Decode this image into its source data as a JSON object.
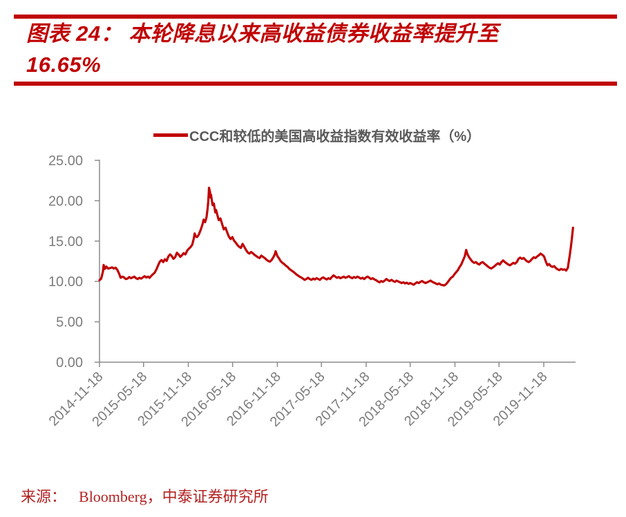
{
  "header": {
    "title_line1": "图表 24： 本轮降息以来高收益债券收益率提升至",
    "title_line2": "16.65%",
    "accent_color": "#C00000"
  },
  "legend": {
    "label": "CCC和较低的美国高收益指数有效收益率（%）",
    "color": "#595959"
  },
  "footer": {
    "source_label": "来源：",
    "source_text": "Bloomberg，中泰证券研究所",
    "color": "#B22222"
  },
  "chart_data": {
    "type": "line",
    "title": "",
    "xlabel": "",
    "ylabel": "",
    "series_name": "CCC和较低的美国高收益指数有效收益率（%）",
    "line_color": "#C00000",
    "axis_color": "#8C8C8C",
    "tick_label_color": "#7D7D7D",
    "grid": false,
    "legend_position": "top",
    "ylim": [
      0,
      25
    ],
    "y_ticks": [
      "25.00",
      "20.00",
      "15.00",
      "10.00",
      "5.00",
      "0.00"
    ],
    "x_ticks": [
      "2014-11-18",
      "2015-05-18",
      "2015-11-18",
      "2016-05-18",
      "2016-11-18",
      "2017-05-18",
      "2017-11-18",
      "2018-05-18",
      "2018-11-18",
      "2019-05-18",
      "2019-11-18"
    ],
    "end_value": 16.65,
    "peak_value": 21.6,
    "points": [
      [
        "2014-11-18",
        10.15
      ],
      [
        "2014-11-25",
        10.35
      ],
      [
        "2014-12-02",
        11.2
      ],
      [
        "2014-12-05",
        12.05
      ],
      [
        "2014-12-10",
        11.55
      ],
      [
        "2014-12-16",
        11.85
      ],
      [
        "2014-12-23",
        11.6
      ],
      [
        "2014-12-31",
        11.65
      ],
      [
        "2015-01-09",
        11.75
      ],
      [
        "2015-01-16",
        11.6
      ],
      [
        "2015-01-23",
        11.7
      ],
      [
        "2015-01-30",
        11.45
      ],
      [
        "2015-02-06",
        11.0
      ],
      [
        "2015-02-13",
        10.45
      ],
      [
        "2015-02-20",
        10.6
      ],
      [
        "2015-02-27",
        10.5
      ],
      [
        "2015-03-06",
        10.3
      ],
      [
        "2015-03-13",
        10.35
      ],
      [
        "2015-03-20",
        10.55
      ],
      [
        "2015-03-27",
        10.4
      ],
      [
        "2015-04-03",
        10.5
      ],
      [
        "2015-04-10",
        10.6
      ],
      [
        "2015-04-17",
        10.4
      ],
      [
        "2015-04-24",
        10.3
      ],
      [
        "2015-05-01",
        10.45
      ],
      [
        "2015-05-08",
        10.35
      ],
      [
        "2015-05-15",
        10.5
      ],
      [
        "2015-05-22",
        10.65
      ],
      [
        "2015-05-29",
        10.5
      ],
      [
        "2015-06-05",
        10.6
      ],
      [
        "2015-06-12",
        10.45
      ],
      [
        "2015-06-19",
        10.7
      ],
      [
        "2015-06-26",
        10.9
      ],
      [
        "2015-07-03",
        11.1
      ],
      [
        "2015-07-10",
        11.5
      ],
      [
        "2015-07-17",
        12.0
      ],
      [
        "2015-07-24",
        12.45
      ],
      [
        "2015-07-31",
        12.65
      ],
      [
        "2015-08-07",
        12.4
      ],
      [
        "2015-08-14",
        12.75
      ],
      [
        "2015-08-21",
        12.55
      ],
      [
        "2015-08-28",
        13.1
      ],
      [
        "2015-09-04",
        13.35
      ],
      [
        "2015-09-11",
        13.15
      ],
      [
        "2015-09-18",
        12.8
      ],
      [
        "2015-09-25",
        13.0
      ],
      [
        "2015-10-02",
        13.55
      ],
      [
        "2015-10-09",
        13.35
      ],
      [
        "2015-10-16",
        13.05
      ],
      [
        "2015-10-23",
        13.25
      ],
      [
        "2015-10-30",
        13.5
      ],
      [
        "2015-11-06",
        13.35
      ],
      [
        "2015-11-13",
        13.8
      ],
      [
        "2015-11-20",
        14.05
      ],
      [
        "2015-11-27",
        14.25
      ],
      [
        "2015-12-04",
        14.55
      ],
      [
        "2015-12-11",
        15.35
      ],
      [
        "2015-12-14",
        15.95
      ],
      [
        "2015-12-18",
        15.6
      ],
      [
        "2015-12-24",
        15.5
      ],
      [
        "2015-12-31",
        15.8
      ],
      [
        "2016-01-08",
        16.4
      ],
      [
        "2016-01-15",
        17.05
      ],
      [
        "2016-01-20",
        17.65
      ],
      [
        "2016-01-26",
        17.35
      ],
      [
        "2016-02-01",
        17.95
      ],
      [
        "2016-02-05",
        18.9
      ],
      [
        "2016-02-08",
        19.9
      ],
      [
        "2016-02-10",
        20.9
      ],
      [
        "2016-02-11",
        21.6
      ],
      [
        "2016-02-15",
        21.1
      ],
      [
        "2016-02-17",
        20.4
      ],
      [
        "2016-02-19",
        20.75
      ],
      [
        "2016-02-23",
        20.0
      ],
      [
        "2016-02-26",
        19.45
      ],
      [
        "2016-03-02",
        19.65
      ],
      [
        "2016-03-08",
        18.55
      ],
      [
        "2016-03-11",
        18.85
      ],
      [
        "2016-03-16",
        18.3
      ],
      [
        "2016-03-22",
        17.6
      ],
      [
        "2016-03-29",
        17.8
      ],
      [
        "2016-04-05",
        17.1
      ],
      [
        "2016-04-12",
        16.45
      ],
      [
        "2016-04-19",
        16.65
      ],
      [
        "2016-04-26",
        16.05
      ],
      [
        "2016-05-03",
        15.55
      ],
      [
        "2016-05-10",
        15.25
      ],
      [
        "2016-05-17",
        15.5
      ],
      [
        "2016-05-24",
        15.05
      ],
      [
        "2016-05-31",
        14.8
      ],
      [
        "2016-06-07",
        14.5
      ],
      [
        "2016-06-14",
        14.3
      ],
      [
        "2016-06-21",
        14.15
      ],
      [
        "2016-06-28",
        14.65
      ],
      [
        "2016-07-05",
        14.3
      ],
      [
        "2016-07-12",
        13.9
      ],
      [
        "2016-07-19",
        13.6
      ],
      [
        "2016-07-26",
        13.45
      ],
      [
        "2016-08-02",
        13.65
      ],
      [
        "2016-08-09",
        13.5
      ],
      [
        "2016-08-16",
        13.3
      ],
      [
        "2016-08-23",
        13.15
      ],
      [
        "2016-08-30",
        13.0
      ],
      [
        "2016-09-06",
        12.9
      ],
      [
        "2016-09-13",
        13.2
      ],
      [
        "2016-09-20",
        13.05
      ],
      [
        "2016-09-27",
        12.9
      ],
      [
        "2016-10-04",
        12.7
      ],
      [
        "2016-10-11",
        12.55
      ],
      [
        "2016-10-18",
        12.45
      ],
      [
        "2016-10-25",
        12.65
      ],
      [
        "2016-11-01",
        12.95
      ],
      [
        "2016-11-08",
        13.4
      ],
      [
        "2016-11-11",
        13.75
      ],
      [
        "2016-11-18",
        13.15
      ],
      [
        "2016-11-25",
        12.85
      ],
      [
        "2016-12-02",
        12.5
      ],
      [
        "2016-12-09",
        12.3
      ],
      [
        "2016-12-16",
        12.15
      ],
      [
        "2016-12-23",
        11.95
      ],
      [
        "2016-12-30",
        11.8
      ],
      [
        "2017-01-06",
        11.55
      ],
      [
        "2017-01-13",
        11.4
      ],
      [
        "2017-01-20",
        11.25
      ],
      [
        "2017-01-27",
        11.1
      ],
      [
        "2017-02-03",
        10.9
      ],
      [
        "2017-02-10",
        10.75
      ],
      [
        "2017-02-17",
        10.6
      ],
      [
        "2017-02-24",
        10.5
      ],
      [
        "2017-03-03",
        10.35
      ],
      [
        "2017-03-10",
        10.2
      ],
      [
        "2017-03-17",
        10.3
      ],
      [
        "2017-03-24",
        10.45
      ],
      [
        "2017-03-31",
        10.3
      ],
      [
        "2017-04-07",
        10.2
      ],
      [
        "2017-04-14",
        10.35
      ],
      [
        "2017-04-21",
        10.25
      ],
      [
        "2017-04-28",
        10.4
      ],
      [
        "2017-05-05",
        10.3
      ],
      [
        "2017-05-12",
        10.2
      ],
      [
        "2017-05-19",
        10.4
      ],
      [
        "2017-05-26",
        10.5
      ],
      [
        "2017-06-02",
        10.35
      ],
      [
        "2017-06-09",
        10.25
      ],
      [
        "2017-06-16",
        10.4
      ],
      [
        "2017-06-23",
        10.3
      ],
      [
        "2017-06-30",
        10.55
      ],
      [
        "2017-07-07",
        10.75
      ],
      [
        "2017-07-14",
        10.6
      ],
      [
        "2017-07-21",
        10.45
      ],
      [
        "2017-07-28",
        10.55
      ],
      [
        "2017-08-04",
        10.4
      ],
      [
        "2017-08-11",
        10.5
      ],
      [
        "2017-08-18",
        10.6
      ],
      [
        "2017-08-25",
        10.45
      ],
      [
        "2017-09-01",
        10.55
      ],
      [
        "2017-09-08",
        10.65
      ],
      [
        "2017-09-15",
        10.5
      ],
      [
        "2017-09-22",
        10.4
      ],
      [
        "2017-09-29",
        10.55
      ],
      [
        "2017-10-06",
        10.45
      ],
      [
        "2017-10-13",
        10.6
      ],
      [
        "2017-10-20",
        10.5
      ],
      [
        "2017-10-27",
        10.35
      ],
      [
        "2017-11-03",
        10.45
      ],
      [
        "2017-11-10",
        10.3
      ],
      [
        "2017-11-17",
        10.5
      ],
      [
        "2017-11-24",
        10.6
      ],
      [
        "2017-12-01",
        10.45
      ],
      [
        "2017-12-08",
        10.3
      ],
      [
        "2017-12-15",
        10.4
      ],
      [
        "2017-12-22",
        10.25
      ],
      [
        "2017-12-29",
        10.15
      ],
      [
        "2018-01-05",
        10.0
      ],
      [
        "2018-01-12",
        9.9
      ],
      [
        "2018-01-19",
        10.05
      ],
      [
        "2018-01-26",
        9.95
      ],
      [
        "2018-02-02",
        10.1
      ],
      [
        "2018-02-09",
        10.3
      ],
      [
        "2018-02-16",
        10.15
      ],
      [
        "2018-02-23",
        10.05
      ],
      [
        "2018-03-02",
        10.2
      ],
      [
        "2018-03-09",
        10.05
      ],
      [
        "2018-03-16",
        9.95
      ],
      [
        "2018-03-23",
        10.1
      ],
      [
        "2018-03-30",
        10.0
      ],
      [
        "2018-04-06",
        9.9
      ],
      [
        "2018-04-13",
        9.8
      ],
      [
        "2018-04-20",
        9.9
      ],
      [
        "2018-04-27",
        9.75
      ],
      [
        "2018-05-04",
        9.85
      ],
      [
        "2018-05-11",
        9.7
      ],
      [
        "2018-05-18",
        9.8
      ],
      [
        "2018-05-25",
        9.7
      ],
      [
        "2018-06-01",
        9.6
      ],
      [
        "2018-06-08",
        9.75
      ],
      [
        "2018-06-15",
        9.9
      ],
      [
        "2018-06-22",
        9.8
      ],
      [
        "2018-06-29",
        9.95
      ],
      [
        "2018-07-06",
        10.05
      ],
      [
        "2018-07-13",
        9.9
      ],
      [
        "2018-07-20",
        9.8
      ],
      [
        "2018-07-27",
        9.9
      ],
      [
        "2018-08-03",
        10.0
      ],
      [
        "2018-08-10",
        10.1
      ],
      [
        "2018-08-17",
        9.95
      ],
      [
        "2018-08-24",
        9.85
      ],
      [
        "2018-08-31",
        9.75
      ],
      [
        "2018-09-07",
        9.65
      ],
      [
        "2018-09-14",
        9.75
      ],
      [
        "2018-09-21",
        9.6
      ],
      [
        "2018-09-28",
        9.55
      ],
      [
        "2018-10-05",
        9.5
      ],
      [
        "2018-10-12",
        9.65
      ],
      [
        "2018-10-19",
        9.9
      ],
      [
        "2018-10-26",
        10.2
      ],
      [
        "2018-11-02",
        10.45
      ],
      [
        "2018-11-09",
        10.6
      ],
      [
        "2018-11-16",
        10.9
      ],
      [
        "2018-11-23",
        11.15
      ],
      [
        "2018-11-30",
        11.4
      ],
      [
        "2018-12-07",
        11.8
      ],
      [
        "2018-12-14",
        12.1
      ],
      [
        "2018-12-21",
        12.6
      ],
      [
        "2018-12-28",
        13.1
      ],
      [
        "2019-01-03",
        13.9
      ],
      [
        "2019-01-08",
        13.4
      ],
      [
        "2019-01-15",
        13.0
      ],
      [
        "2019-01-22",
        12.7
      ],
      [
        "2019-01-29",
        12.45
      ],
      [
        "2019-02-05",
        12.3
      ],
      [
        "2019-02-12",
        12.4
      ],
      [
        "2019-02-19",
        12.2
      ],
      [
        "2019-02-26",
        12.1
      ],
      [
        "2019-03-05",
        12.3
      ],
      [
        "2019-03-12",
        12.4
      ],
      [
        "2019-03-19",
        12.2
      ],
      [
        "2019-03-26",
        12.05
      ],
      [
        "2019-04-02",
        11.85
      ],
      [
        "2019-04-09",
        11.7
      ],
      [
        "2019-04-16",
        11.6
      ],
      [
        "2019-04-23",
        11.75
      ],
      [
        "2019-04-30",
        11.9
      ],
      [
        "2019-05-07",
        12.1
      ],
      [
        "2019-05-14",
        12.25
      ],
      [
        "2019-05-21",
        12.1
      ],
      [
        "2019-05-28",
        12.4
      ],
      [
        "2019-06-04",
        12.6
      ],
      [
        "2019-06-11",
        12.4
      ],
      [
        "2019-06-18",
        12.25
      ],
      [
        "2019-06-25",
        12.1
      ],
      [
        "2019-07-02",
        12.0
      ],
      [
        "2019-07-09",
        12.15
      ],
      [
        "2019-07-16",
        12.3
      ],
      [
        "2019-07-23",
        12.2
      ],
      [
        "2019-07-30",
        12.4
      ],
      [
        "2019-08-06",
        12.8
      ],
      [
        "2019-08-13",
        12.95
      ],
      [
        "2019-08-20",
        12.8
      ],
      [
        "2019-08-27",
        12.9
      ],
      [
        "2019-09-03",
        12.7
      ],
      [
        "2019-09-10",
        12.5
      ],
      [
        "2019-09-17",
        12.4
      ],
      [
        "2019-09-24",
        12.55
      ],
      [
        "2019-10-01",
        12.8
      ],
      [
        "2019-10-08",
        13.0
      ],
      [
        "2019-10-15",
        12.9
      ],
      [
        "2019-10-22",
        13.1
      ],
      [
        "2019-10-29",
        13.25
      ],
      [
        "2019-11-05",
        13.45
      ],
      [
        "2019-11-12",
        13.3
      ],
      [
        "2019-11-19",
        13.1
      ],
      [
        "2019-11-26",
        12.5
      ],
      [
        "2019-12-03",
        12.0
      ],
      [
        "2019-12-10",
        12.15
      ],
      [
        "2019-12-17",
        11.9
      ],
      [
        "2019-12-24",
        11.8
      ],
      [
        "2019-12-31",
        11.9
      ],
      [
        "2020-01-07",
        11.65
      ],
      [
        "2020-01-14",
        11.5
      ],
      [
        "2020-01-21",
        11.4
      ],
      [
        "2020-01-28",
        11.55
      ],
      [
        "2020-02-04",
        11.45
      ],
      [
        "2020-02-11",
        11.5
      ],
      [
        "2020-02-18",
        11.35
      ],
      [
        "2020-02-25",
        11.7
      ],
      [
        "2020-02-28",
        12.3
      ],
      [
        "2020-03-04",
        13.3
      ],
      [
        "2020-03-09",
        14.4
      ],
      [
        "2020-03-13",
        15.4
      ],
      [
        "2020-03-17",
        16.65
      ]
    ]
  }
}
